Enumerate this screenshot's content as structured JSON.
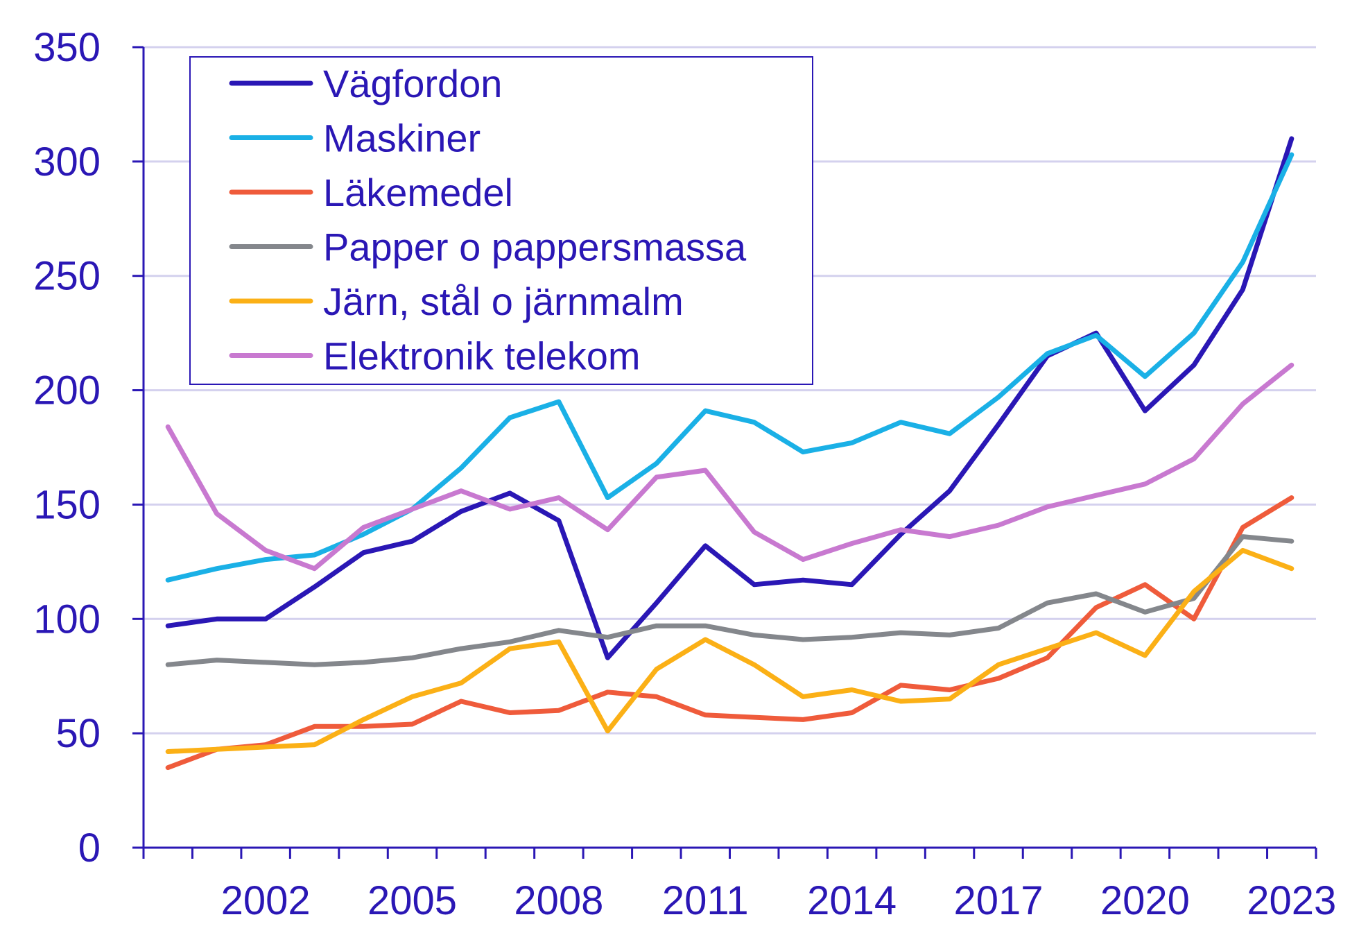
{
  "chart_data": {
    "type": "line",
    "x": [
      2000,
      2001,
      2002,
      2003,
      2004,
      2005,
      2006,
      2007,
      2008,
      2009,
      2010,
      2011,
      2012,
      2013,
      2014,
      2015,
      2016,
      2017,
      2018,
      2019,
      2020,
      2021,
      2022,
      2023
    ],
    "x_tick_labels": [
      "2002",
      "2005",
      "2008",
      "2011",
      "2014",
      "2017",
      "2020",
      "2023"
    ],
    "x_tick_values": [
      2002,
      2005,
      2008,
      2011,
      2014,
      2017,
      2020,
      2023
    ],
    "ylim": [
      0,
      350
    ],
    "y_ticks": [
      0,
      50,
      100,
      150,
      200,
      250,
      300,
      350
    ],
    "grid": true,
    "legend_position": "top-left",
    "title": "",
    "xlabel": "",
    "ylabel": "",
    "series": [
      {
        "name": "Vägfordon",
        "color": "#2a17b5",
        "values": [
          97,
          100,
          100,
          114,
          129,
          134,
          147,
          155,
          143,
          83,
          107,
          132,
          115,
          117,
          115,
          137,
          156,
          185,
          215,
          225,
          191,
          211,
          244,
          310
        ]
      },
      {
        "name": "Maskiner",
        "color": "#1ab0e6",
        "values": [
          117,
          122,
          126,
          128,
          137,
          148,
          166,
          188,
          195,
          153,
          168,
          191,
          186,
          173,
          177,
          186,
          181,
          197,
          216,
          224,
          206,
          225,
          256,
          303
        ]
      },
      {
        "name": "Läkemedel",
        "color": "#ef5b3b",
        "values": [
          35,
          43,
          45,
          53,
          53,
          54,
          64,
          59,
          60,
          68,
          66,
          58,
          57,
          56,
          59,
          71,
          69,
          74,
          83,
          105,
          115,
          100,
          140,
          153
        ]
      },
      {
        "name": "Papper o pappersmassa",
        "color": "#84878c",
        "values": [
          80,
          82,
          81,
          80,
          81,
          83,
          87,
          90,
          95,
          92,
          97,
          97,
          93,
          91,
          92,
          94,
          93,
          96,
          107,
          111,
          103,
          109,
          136,
          134
        ]
      },
      {
        "name": "Järn, stål o järnmalm",
        "color": "#fbb016",
        "values": [
          42,
          43,
          44,
          45,
          56,
          66,
          72,
          87,
          90,
          51,
          78,
          91,
          80,
          66,
          69,
          64,
          65,
          80,
          87,
          94,
          84,
          112,
          130,
          122
        ]
      },
      {
        "name": "Elektronik telekom",
        "color": "#c879d0",
        "values": [
          184,
          146,
          130,
          122,
          140,
          148,
          156,
          148,
          153,
          139,
          162,
          165,
          138,
          126,
          133,
          139,
          136,
          141,
          149,
          154,
          159,
          170,
          194,
          211
        ]
      }
    ]
  }
}
